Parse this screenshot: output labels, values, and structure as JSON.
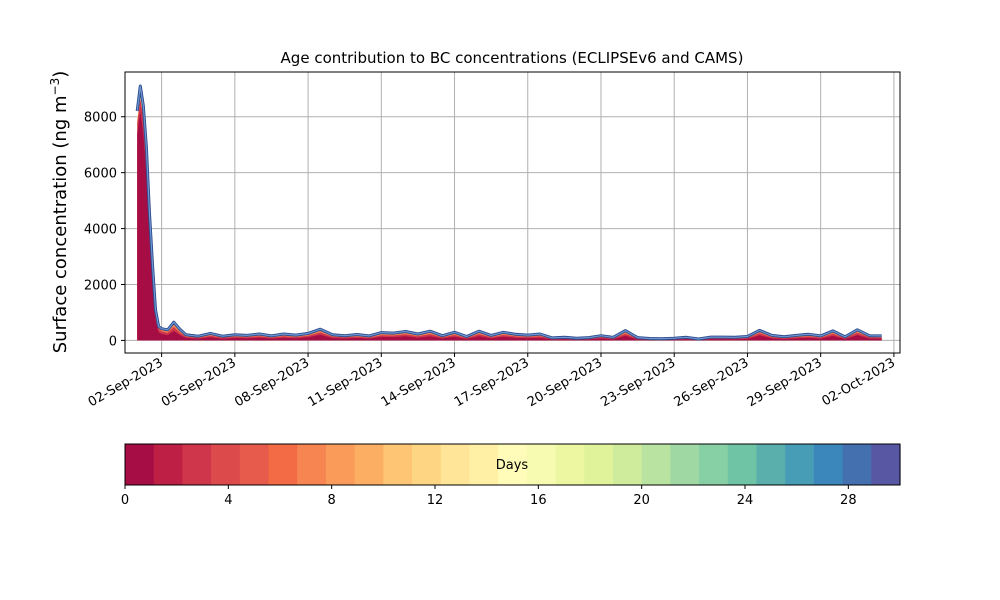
{
  "chart_data": {
    "type": "area",
    "title": "Age contribution to BC concentrations (ECLIPSEv6 and CAMS)",
    "ylabel": "Surface concentration (ng m",
    "ylabel_sup": "−3",
    "ylabel_close": ")",
    "xlabel": "",
    "ylim": [
      -450,
      9600
    ],
    "xlim": [
      "2023-08-31T12:00",
      "2023-10-02T06:00"
    ],
    "yticks": [
      0,
      2000,
      4000,
      6000,
      8000
    ],
    "ytick_labels": [
      "0",
      "2000",
      "4000",
      "6000",
      "8000"
    ],
    "xticks": [
      "2023-09-02",
      "2023-09-05",
      "2023-09-08",
      "2023-09-11",
      "2023-09-14",
      "2023-09-17",
      "2023-09-20",
      "2023-09-23",
      "2023-09-26",
      "2023-09-29",
      "2023-10-02"
    ],
    "xtick_labels": [
      "02-Sep-2023",
      "05-Sep-2023",
      "08-Sep-2023",
      "11-Sep-2023",
      "14-Sep-2023",
      "17-Sep-2023",
      "20-Sep-2023",
      "23-Sep-2023",
      "26-Sep-2023",
      "29-Sep-2023",
      "02-Oct-2023"
    ],
    "grid": true,
    "x": [
      "2023-09-01T00:00",
      "2023-09-01T03:00",
      "2023-09-01T06:00",
      "2023-09-01T09:00",
      "2023-09-01T12:00",
      "2023-09-01T15:00",
      "2023-09-01T18:00",
      "2023-09-01T21:00",
      "2023-09-02T00:00",
      "2023-09-02T06:00",
      "2023-09-02T12:00",
      "2023-09-02T18:00",
      "2023-09-03T00:00",
      "2023-09-03T12:00",
      "2023-09-04T00:00",
      "2023-09-04T12:00",
      "2023-09-05T00:00",
      "2023-09-05T12:00",
      "2023-09-06T00:00",
      "2023-09-06T12:00",
      "2023-09-07T00:00",
      "2023-09-07T12:00",
      "2023-09-08T00:00",
      "2023-09-08T12:00",
      "2023-09-09T00:00",
      "2023-09-09T12:00",
      "2023-09-10T00:00",
      "2023-09-10T12:00",
      "2023-09-11T00:00",
      "2023-09-11T12:00",
      "2023-09-12T00:00",
      "2023-09-12T12:00",
      "2023-09-13T00:00",
      "2023-09-13T12:00",
      "2023-09-14T00:00",
      "2023-09-14T12:00",
      "2023-09-15T00:00",
      "2023-09-15T12:00",
      "2023-09-16T00:00",
      "2023-09-16T12:00",
      "2023-09-17T00:00",
      "2023-09-17T12:00",
      "2023-09-18T00:00",
      "2023-09-18T12:00",
      "2023-09-19T00:00",
      "2023-09-19T12:00",
      "2023-09-20T00:00",
      "2023-09-20T12:00",
      "2023-09-21T00:00",
      "2023-09-21T12:00",
      "2023-09-22T00:00",
      "2023-09-22T12:00",
      "2023-09-23T00:00",
      "2023-09-23T12:00",
      "2023-09-24T00:00",
      "2023-09-24T12:00",
      "2023-09-25T00:00",
      "2023-09-25T12:00",
      "2023-09-26T00:00",
      "2023-09-26T12:00",
      "2023-09-27T00:00",
      "2023-09-27T12:00",
      "2023-09-28T00:00",
      "2023-09-28T12:00",
      "2023-09-29T00:00",
      "2023-09-29T12:00",
      "2023-09-30T00:00",
      "2023-09-30T12:00",
      "2023-10-01T00:00",
      "2023-10-01T12:00"
    ],
    "total": [
      8200,
      9100,
      8400,
      6900,
      4600,
      2700,
      1100,
      500,
      420,
      380,
      650,
      400,
      200,
      150,
      250,
      150,
      200,
      180,
      230,
      160,
      230,
      190,
      250,
      400,
      200,
      170,
      210,
      160,
      280,
      260,
      320,
      230,
      330,
      170,
      290,
      140,
      330,
      180,
      290,
      220,
      190,
      230,
      90,
      110,
      80,
      100,
      170,
      110,
      350,
      100,
      70,
      60,
      80,
      110,
      50,
      120,
      120,
      110,
      140,
      360,
      180,
      130,
      180,
      220,
      160,
      340,
      130,
      380,
      170,
      160
    ],
    "age0_share": [
      0.9,
      0.9,
      0.88,
      0.86,
      0.82,
      0.75,
      0.65,
      0.6,
      0.55,
      0.5,
      0.52,
      0.48,
      0.45,
      0.43,
      0.45,
      0.42,
      0.43,
      0.42,
      0.44,
      0.42,
      0.43,
      0.42,
      0.44,
      0.5,
      0.42,
      0.42,
      0.43,
      0.42,
      0.45,
      0.45,
      0.46,
      0.43,
      0.46,
      0.42,
      0.45,
      0.4,
      0.46,
      0.42,
      0.45,
      0.43,
      0.42,
      0.43,
      0.38,
      0.39,
      0.37,
      0.38,
      0.42,
      0.39,
      0.48,
      0.38,
      0.36,
      0.35,
      0.36,
      0.38,
      0.34,
      0.39,
      0.39,
      0.38,
      0.4,
      0.5,
      0.42,
      0.39,
      0.42,
      0.44,
      0.4,
      0.48,
      0.39,
      0.5,
      0.41,
      0.4
    ],
    "colorbar": {
      "label": "Days",
      "range": [
        0,
        30
      ],
      "ticks": [
        0,
        4,
        8,
        12,
        16,
        20,
        24,
        28
      ],
      "tick_labels": [
        "0",
        "4",
        "8",
        "12",
        "16",
        "20",
        "24",
        "28"
      ],
      "colors": [
        "#a50d44",
        "#bd1f45",
        "#d0364b",
        "#dd4a4c",
        "#e65b4b",
        "#f26b44",
        "#f68551",
        "#fa9b5a",
        "#fcaf63",
        "#fdc574",
        "#fed683",
        "#fee597",
        "#fff0a6",
        "#fffbb8",
        "#f7fbb2",
        "#edf7a2",
        "#e0f39b",
        "#cfec9d",
        "#b9e3a0",
        "#a0d8a4",
        "#87cfa4",
        "#6ec4a5",
        "#5aafad",
        "#479db6",
        "#3b87bb",
        "#4570b0",
        "#5757a3"
      ]
    },
    "colors": {
      "line_outer": "#2c4a8c",
      "line_inner": "#6f97d1",
      "age_0_to_1_day": "#a50d44",
      "age_1_to_3_days": "#d0364b",
      "age_3_to_8_days": "#f68551",
      "age_8_plus_days": "#fee597"
    }
  }
}
